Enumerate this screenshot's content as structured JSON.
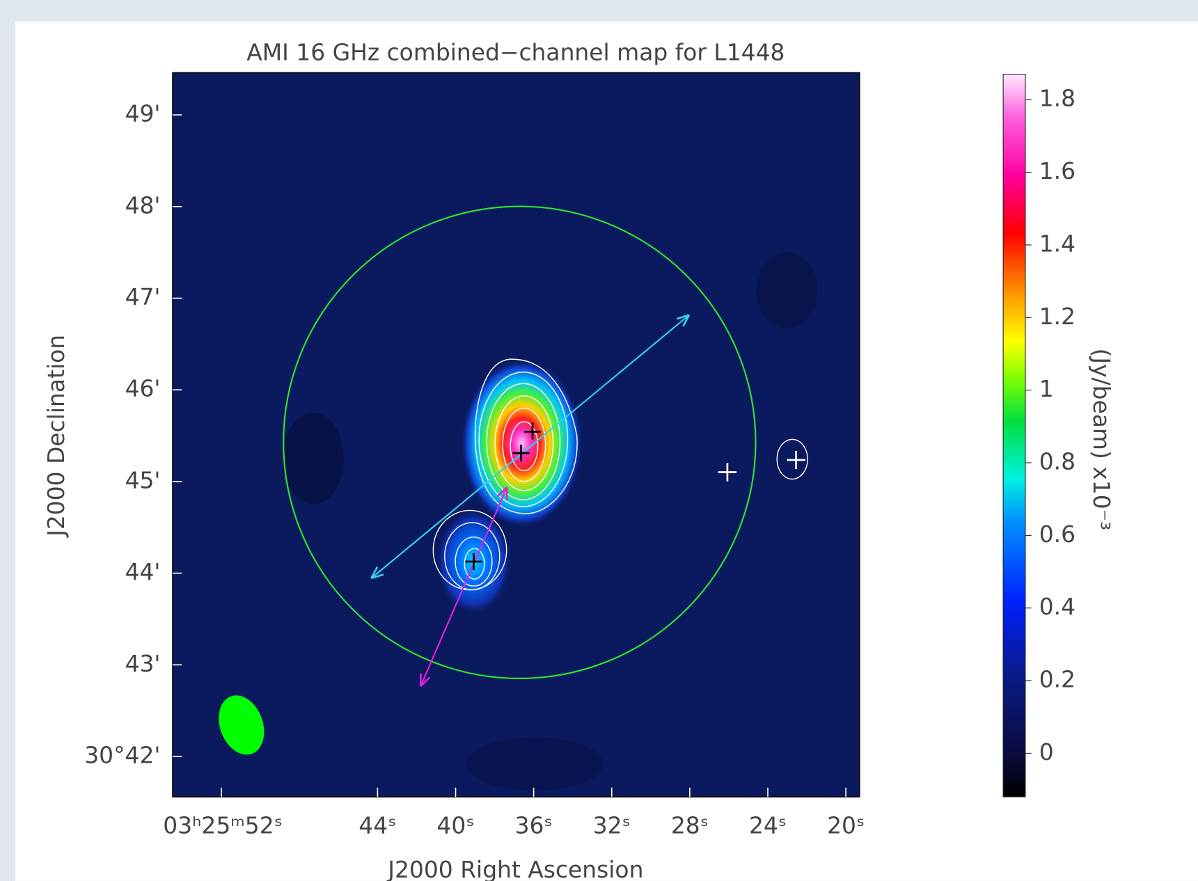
{
  "chart_data": {
    "type": "map",
    "title": "AMI 16 GHz combined−channel map for L1448",
    "x_label": "J2000 Right Ascension",
    "y_label": "J2000 Declination",
    "xlim": [
      54.5,
      19.3
    ],
    "xticks": [
      {
        "value": 52,
        "label": "03ʰ25ᵐ52ˢ"
      },
      {
        "value": 44,
        "label": "44ˢ"
      },
      {
        "value": 40,
        "label": "40ˢ"
      },
      {
        "value": 36,
        "label": "36ˢ"
      },
      {
        "value": 32,
        "label": "32ˢ"
      },
      {
        "value": 28,
        "label": "28ˢ"
      },
      {
        "value": 24,
        "label": "24ˢ"
      },
      {
        "value": 20,
        "label": "20ˢ"
      }
    ],
    "ylim": [
      41.56,
      49.46
    ],
    "yticks": [
      {
        "value": 49,
        "label": "49'"
      },
      {
        "value": 48,
        "label": "48'"
      },
      {
        "value": 47,
        "label": "47'"
      },
      {
        "value": 46,
        "label": "46'"
      },
      {
        "value": 45,
        "label": "45'"
      },
      {
        "value": 44,
        "label": "44'"
      },
      {
        "value": 43,
        "label": "43'"
      },
      {
        "value": 42,
        "label": "30°42'"
      }
    ],
    "colorbar": {
      "label": "(Jy/beam)  x10⁻³",
      "lim": [
        -0.12,
        1.87
      ],
      "ticks": [
        0,
        0.2,
        0.4,
        0.6,
        0.8,
        1,
        1.2,
        1.4,
        1.6,
        1.8
      ]
    }
  }
}
